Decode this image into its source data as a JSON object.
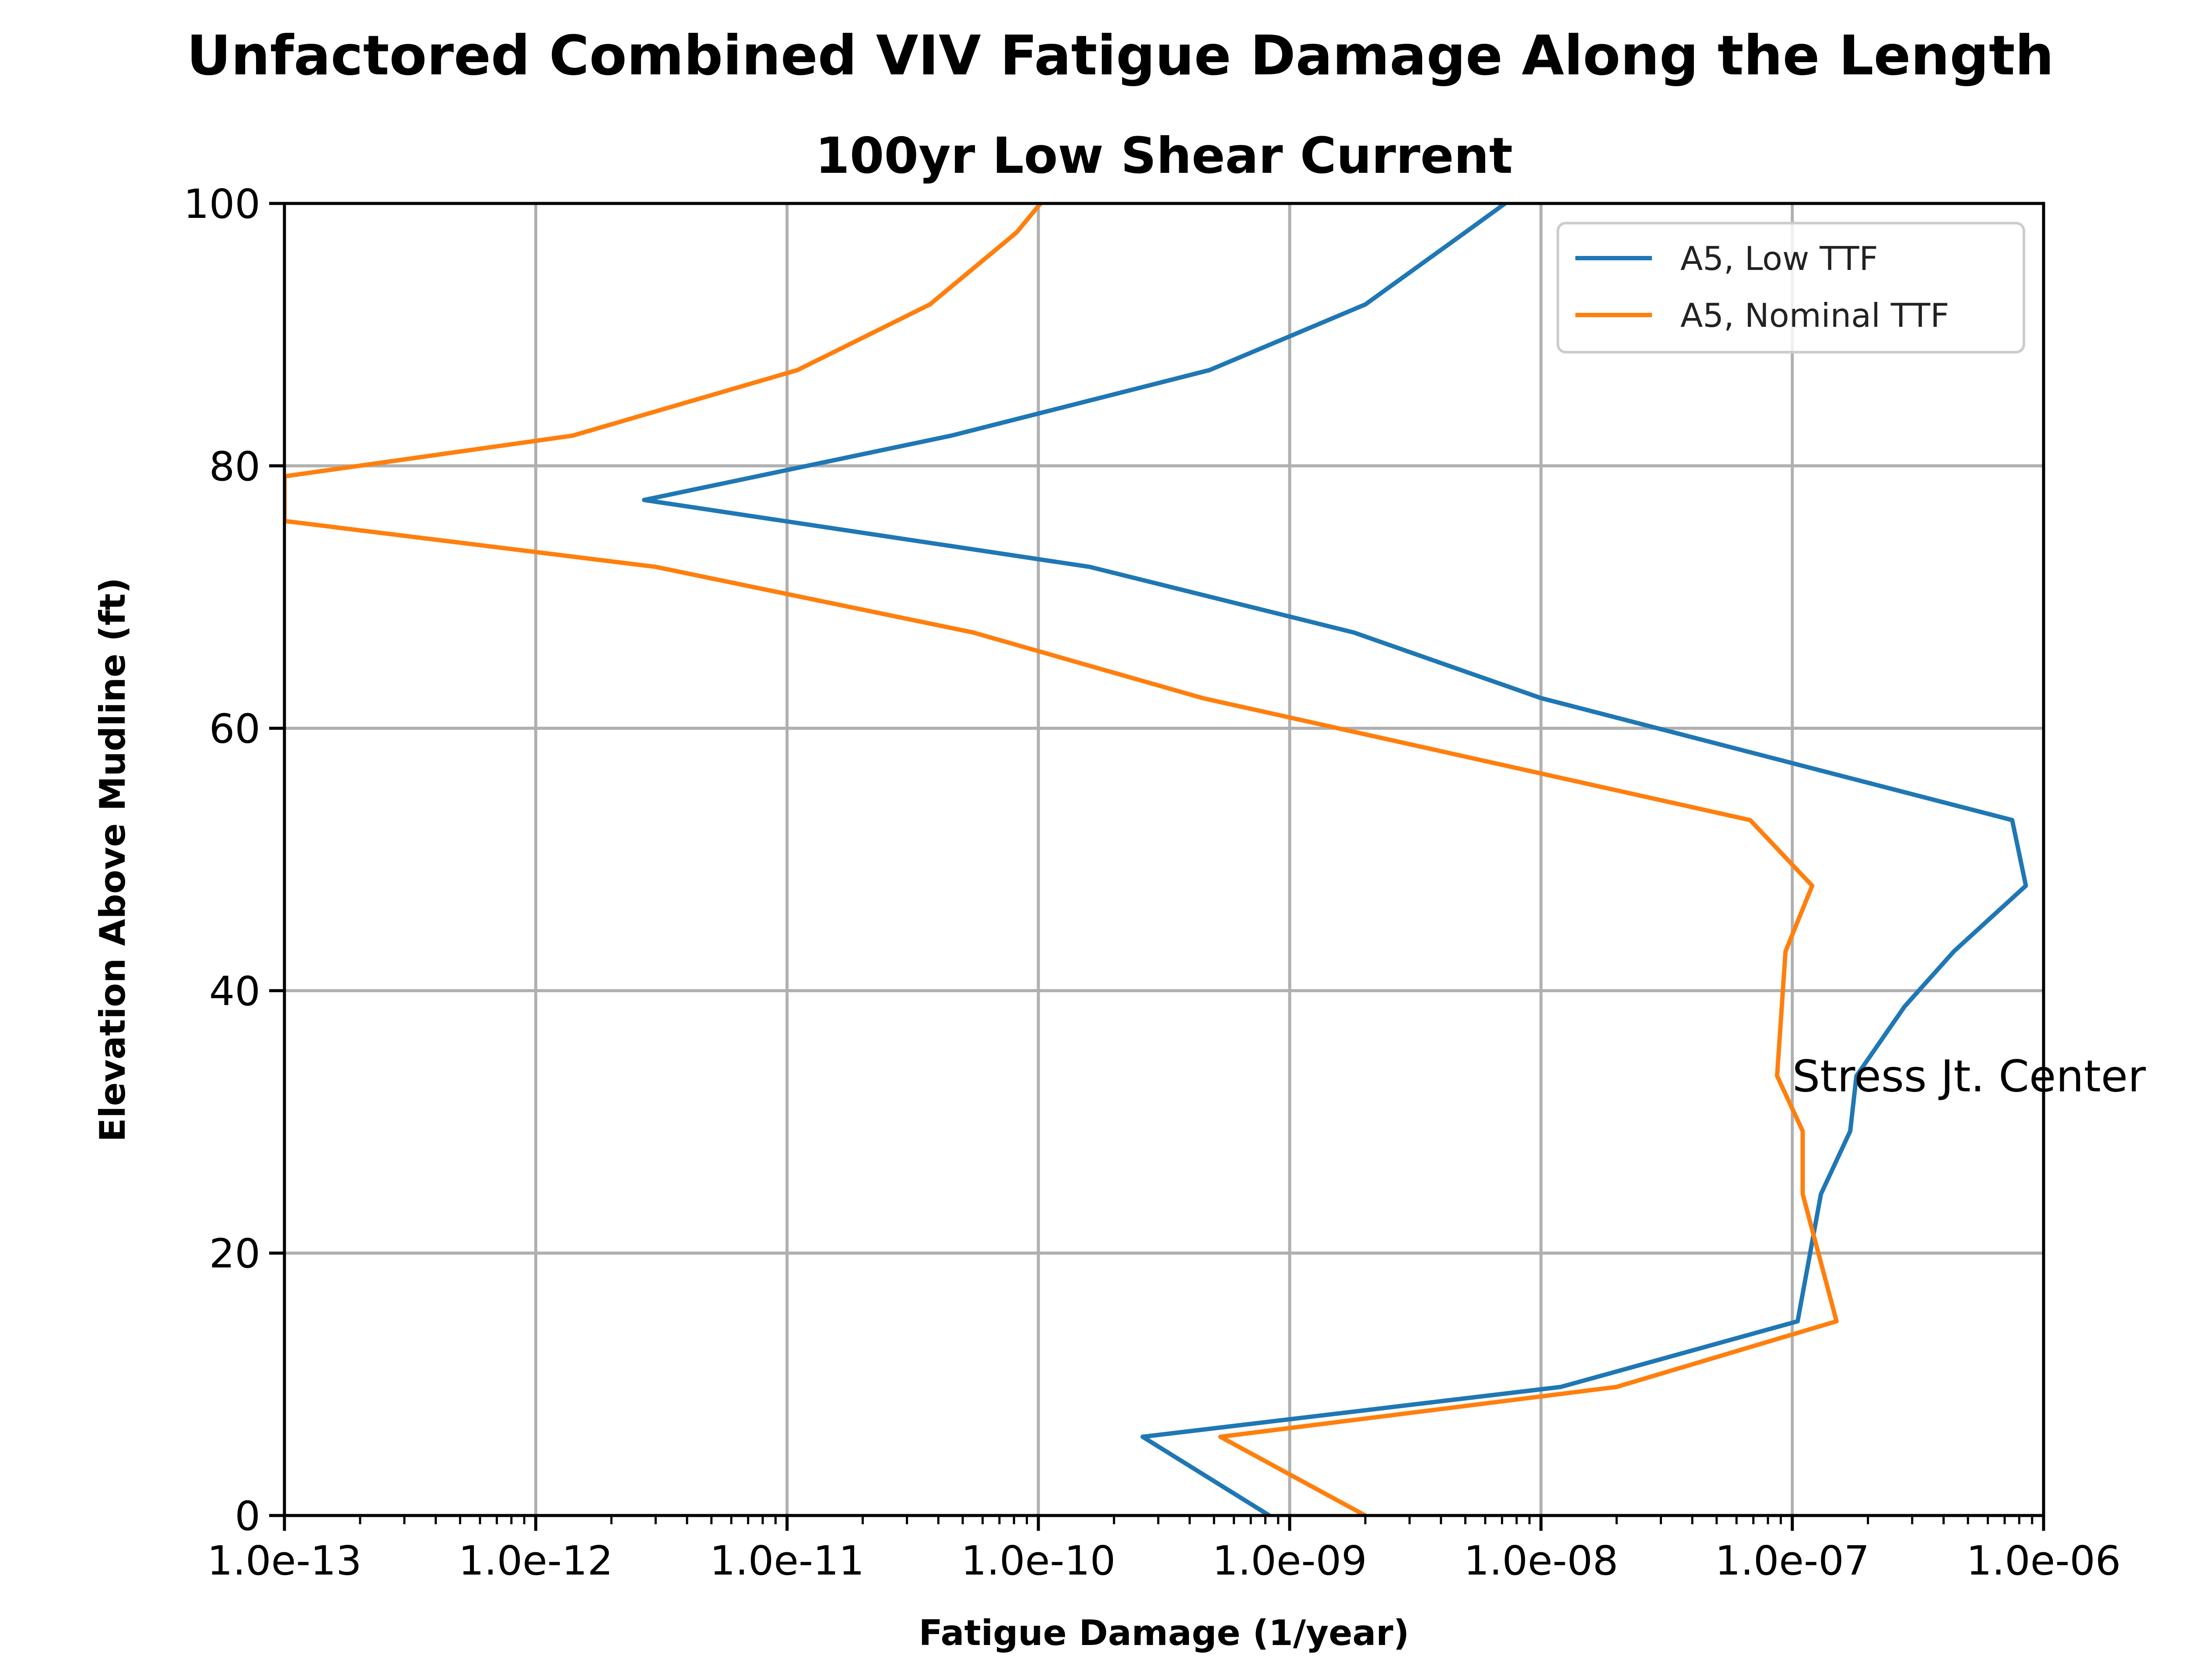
{
  "chart_data": {
    "type": "line",
    "title": "Unfactored Combined VIV Fatigue Damage Along the Length",
    "subtitle": "100yr Low Shear Current",
    "xlabel": "Fatigue Damage (1/year)",
    "ylabel": "Elevation Above Mudline (ft)",
    "xscale": "log",
    "xlim": [
      1e-13,
      1e-06
    ],
    "ylim": [
      0,
      100
    ],
    "x_ticks": [
      "1.0e-13",
      "1.0e-12",
      "1.0e-11",
      "1.0e-10",
      "1.0e-09",
      "1.0e-08",
      "1.0e-07",
      "1.0e-06"
    ],
    "y_ticks": [
      "0",
      "20",
      "40",
      "60",
      "80",
      "100"
    ],
    "grid": true,
    "legend_position": "upper right",
    "series": [
      {
        "name": "A5, Low TTF",
        "color": "#1f77b4",
        "points": [
          {
            "x": 8.3e-10,
            "y": 0
          },
          {
            "x": 2.6e-10,
            "y": 6
          },
          {
            "x": 1.2e-08,
            "y": 9.8
          },
          {
            "x": 1.05e-07,
            "y": 14.8
          },
          {
            "x": 1.3e-07,
            "y": 24.5
          },
          {
            "x": 1.7e-07,
            "y": 29.3
          },
          {
            "x": 1.8e-07,
            "y": 33.5
          },
          {
            "x": 2.8e-07,
            "y": 38.8
          },
          {
            "x": 4.4e-07,
            "y": 43
          },
          {
            "x": 8.5e-07,
            "y": 48
          },
          {
            "x": 7.5e-07,
            "y": 53
          },
          {
            "x": 1e-08,
            "y": 62.3
          },
          {
            "x": 1.8e-09,
            "y": 67.3
          },
          {
            "x": 1.6e-10,
            "y": 72.3
          },
          {
            "x": 2.7e-12,
            "y": 77.4
          },
          {
            "x": 4.5e-11,
            "y": 82.3
          },
          {
            "x": 4.8e-10,
            "y": 87.3
          },
          {
            "x": 2e-09,
            "y": 92.3
          },
          {
            "x": 5e-09,
            "y": 97.8
          },
          {
            "x": 7.2e-09,
            "y": 100
          }
        ]
      },
      {
        "name": "A5, Nominal TTF",
        "color": "#ff7f0e",
        "points": [
          {
            "x": 2e-09,
            "y": 0
          },
          {
            "x": 5.3e-10,
            "y": 6
          },
          {
            "x": 2e-08,
            "y": 9.8
          },
          {
            "x": 1.5e-07,
            "y": 14.8
          },
          {
            "x": 1.1e-07,
            "y": 24.5
          },
          {
            "x": 1.1e-07,
            "y": 29.3
          },
          {
            "x": 8.7e-08,
            "y": 33.5
          },
          {
            "x": 9.4e-08,
            "y": 43
          },
          {
            "x": 1.2e-07,
            "y": 48
          },
          {
            "x": 6.8e-08,
            "y": 53
          },
          {
            "x": 4.5e-10,
            "y": 62.3
          },
          {
            "x": 5.5e-11,
            "y": 67.3
          },
          {
            "x": 3e-12,
            "y": 72.3
          },
          {
            "x": 1e-13,
            "y": 75.8
          },
          {
            "x": 1e-13,
            "y": 79.2
          },
          {
            "x": 1.4e-12,
            "y": 82.3
          },
          {
            "x": 1.1e-11,
            "y": 87.3
          },
          {
            "x": 3.7e-11,
            "y": 92.3
          },
          {
            "x": 8.2e-11,
            "y": 97.8
          },
          {
            "x": 1.02e-10,
            "y": 100
          }
        ]
      }
    ],
    "annotations": [
      {
        "text": "Stress Jt. Center",
        "x": 1e-07,
        "y": 33.5
      }
    ]
  }
}
